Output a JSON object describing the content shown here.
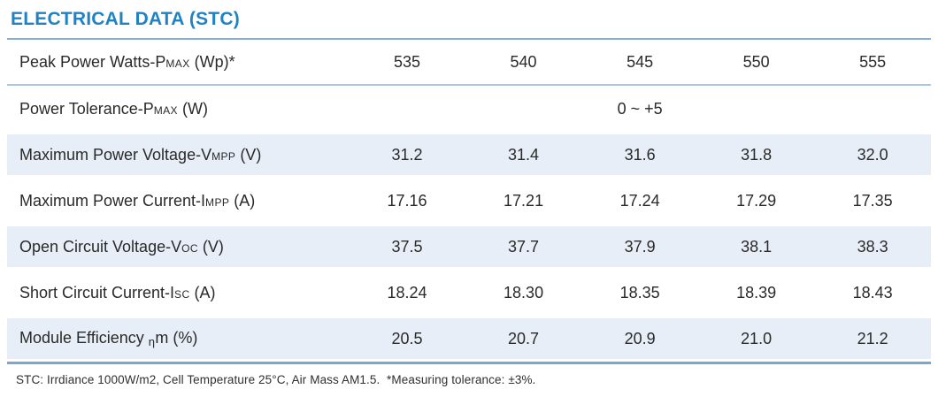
{
  "page": {
    "title": "ELECTRICAL DATA (STC)",
    "footer": "STC: Irrdiance 1000W/m2, Cell Temperature 25°C, Air Mass AM1.5.  *Measuring tolerance: ±3%."
  },
  "colors": {
    "title_blue": "#1e82c4",
    "rule_blue": "#85aed4",
    "row_shade_blue": "#e8eef7",
    "table_bottom_blue": "#79a7d2",
    "text": "#2a2a2a"
  },
  "table": {
    "rows": [
      {
        "label_main": "Peak Power Watts-P",
        "label_sub": "MAX",
        "label_rest": " (Wp)*",
        "values": [
          "535",
          "540",
          "545",
          "550",
          "555"
        ]
      },
      {
        "label_main": "Power Tolerance-P",
        "label_sub": "MAX",
        "label_rest": " (W)",
        "merged_value": "0 ~ +5"
      },
      {
        "label_main": "Maximum Power Voltage-V",
        "label_sub": "MPP",
        "label_rest": " (V)",
        "values": [
          "31.2",
          "31.4",
          "31.6",
          "31.8",
          "32.0"
        ]
      },
      {
        "label_main": "Maximum Power Current-I",
        "label_sub": "MPP",
        "label_rest": " (A)",
        "values": [
          "17.16",
          "17.21",
          "17.24",
          "17.29",
          "17.35"
        ]
      },
      {
        "label_main": "Open Circuit Voltage-V",
        "label_sub": "OC",
        "label_rest": " (V)",
        "values": [
          "37.5",
          "37.7",
          "37.9",
          "38.1",
          "38.3"
        ]
      },
      {
        "label_main": "Short Circuit Current-I",
        "label_sub": "SC",
        "label_rest": " (A)",
        "values": [
          "18.24",
          "18.30",
          "18.35",
          "18.39",
          "18.43"
        ]
      },
      {
        "label_main": "Module Efficiency ",
        "label_sub": "η",
        "label_rest": "m (%)",
        "values": [
          "20.5",
          "20.7",
          "20.9",
          "21.0",
          "21.2"
        ]
      }
    ]
  }
}
